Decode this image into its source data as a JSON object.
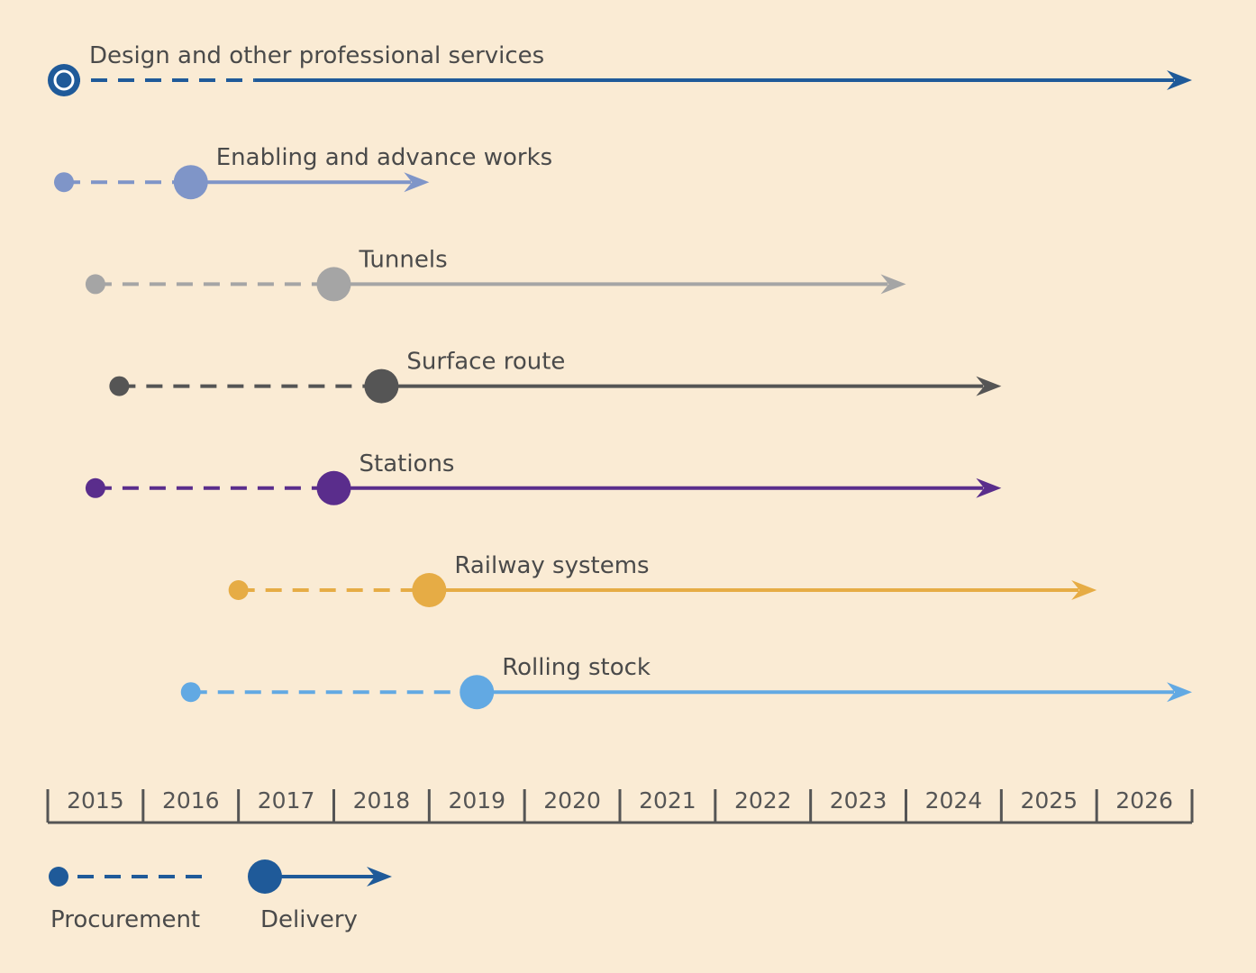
{
  "chart_data": {
    "type": "timeline",
    "x_unit": "year",
    "xlim": [
      2014.5,
      2026.5
    ],
    "ticks": [
      "2015",
      "2016",
      "2017",
      "2018",
      "2019",
      "2020",
      "2021",
      "2022",
      "2023",
      "2024",
      "2025",
      "2026"
    ],
    "series": [
      {
        "name": "Design and other professional services",
        "procurement_start": 2014.67,
        "delivery_start": 2016.67,
        "end": 2026.5,
        "color": "#1f5a99",
        "marker": "ring"
      },
      {
        "name": "Enabling and advance works",
        "procurement_start": 2014.67,
        "delivery_start": 2016.0,
        "end": 2018.5,
        "color": "#7f95c8"
      },
      {
        "name": "Tunnels",
        "procurement_start": 2015.0,
        "delivery_start": 2017.5,
        "end": 2023.5,
        "color": "#a5a5a5"
      },
      {
        "name": "Surface route",
        "procurement_start": 2015.25,
        "delivery_start": 2018.0,
        "end": 2024.5,
        "color": "#555555"
      },
      {
        "name": "Stations",
        "procurement_start": 2015.0,
        "delivery_start": 2017.5,
        "end": 2024.5,
        "color": "#5a2d8c"
      },
      {
        "name": "Railway systems",
        "procurement_start": 2016.5,
        "delivery_start": 2018.5,
        "end": 2025.5,
        "color": "#e6ac45"
      },
      {
        "name": "Rolling stock",
        "procurement_start": 2016.0,
        "delivery_start": 2019.0,
        "end": 2026.5,
        "color": "#62a9e3"
      }
    ],
    "legend": [
      {
        "label": "Procurement",
        "style": "dashed",
        "color": "#1f5a99"
      },
      {
        "label": "Delivery",
        "style": "solid-arrow",
        "color": "#1f5a99"
      }
    ],
    "legend_position": "bottom-left"
  }
}
